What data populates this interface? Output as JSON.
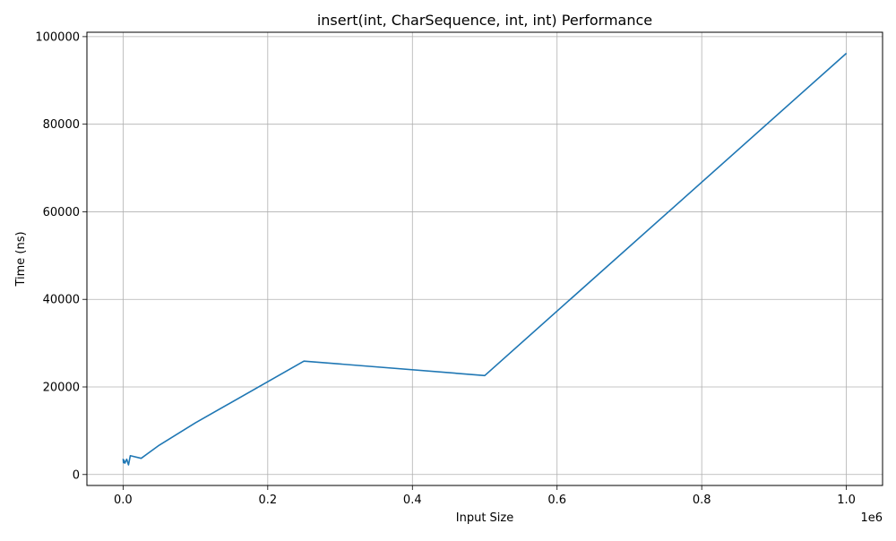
{
  "chart_data": {
    "type": "line",
    "title": "insert(int, CharSequence, int, int) Performance",
    "xlabel": "Input Size",
    "ylabel": "Time (ns)",
    "x_offset_label": "1e6",
    "xlim": [
      -50000,
      1050000
    ],
    "ylim": [
      -2500,
      101000
    ],
    "xticks": [
      0,
      200000,
      400000,
      600000,
      800000,
      1000000
    ],
    "xtick_labels": [
      "0.0",
      "0.2",
      "0.4",
      "0.6",
      "0.8",
      "1.0"
    ],
    "yticks": [
      0,
      20000,
      40000,
      60000,
      80000,
      100000
    ],
    "ytick_labels": [
      "0",
      "20000",
      "40000",
      "60000",
      "80000",
      "100000"
    ],
    "grid": true,
    "series": [
      {
        "color": "#1f77b4",
        "x": [
          100,
          500,
          1000,
          2500,
          5000,
          7500,
          10000,
          25000,
          50000,
          100000,
          250000,
          500000,
          1000000
        ],
        "y": [
          3600,
          2700,
          3300,
          2600,
          3500,
          2200,
          4300,
          3700,
          6700,
          11800,
          25900,
          22600,
          96200
        ]
      }
    ]
  }
}
